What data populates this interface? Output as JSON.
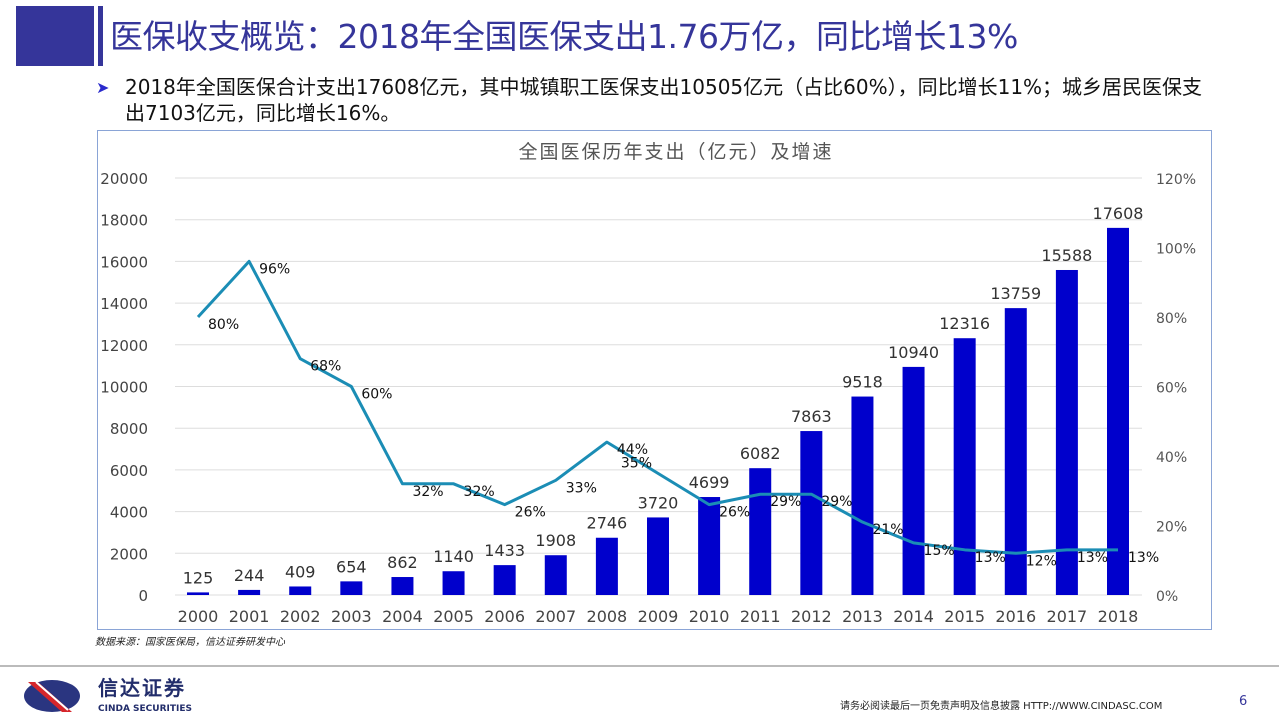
{
  "header": {
    "title": "医保收支概览：2018年全国医保支出1.76万亿，同比增长13%"
  },
  "summary": {
    "bullet_icon": "arrow-bullet-icon",
    "text": "2018年全国医保合计支出17608亿元，其中城镇职工医保支出10505亿元（占比60%），同比增长11%；城乡居民医保支出7103亿元，同比增长16%。"
  },
  "chart_data": {
    "type": "bar+line",
    "title": "全国医保历年支出（亿元）及增速",
    "categories": [
      "2000",
      "2001",
      "2002",
      "2003",
      "2004",
      "2005",
      "2006",
      "2007",
      "2008",
      "2009",
      "2010",
      "2011",
      "2012",
      "2013",
      "2014",
      "2015",
      "2016",
      "2017",
      "2018"
    ],
    "series": [
      {
        "type": "bar",
        "axis": "left",
        "values": [
          125,
          244,
          409,
          654,
          862,
          1140,
          1433,
          1908,
          2746,
          3720,
          4699,
          6082,
          7863,
          9518,
          10940,
          12316,
          13759,
          15588,
          17608
        ],
        "color": "#0000cc"
      },
      {
        "type": "line",
        "axis": "right",
        "values": [
          80,
          96,
          68,
          60,
          32,
          32,
          26,
          33,
          44,
          35,
          26,
          29,
          29,
          21,
          15,
          13,
          12,
          13,
          13
        ],
        "color": "#1b8db5"
      }
    ],
    "left_axis": {
      "ylim": [
        0,
        20000
      ],
      "ticks": [
        "0",
        "2000",
        "4000",
        "6000",
        "8000",
        "10000",
        "12000",
        "14000",
        "16000",
        "18000",
        "20000"
      ]
    },
    "right_axis": {
      "ylim": [
        0,
        120
      ],
      "ticks": [
        "0%",
        "20%",
        "40%",
        "60%",
        "80%",
        "100%",
        "120%"
      ]
    },
    "grid": true
  },
  "footer": {
    "source": "数据来源：国家医保局，信达证券研发中心",
    "brand_cn": "信达证券",
    "brand_en": "CINDA SECURITIES",
    "disclaimer": "请务必阅读最后一页免责声明及信息披露  HTTP://WWW.CINDASC.COM",
    "page": "6"
  }
}
